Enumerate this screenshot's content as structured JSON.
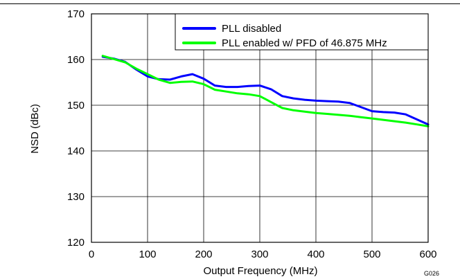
{
  "chart_data": {
    "type": "line",
    "title": "",
    "xlabel": "Output Frequency (MHz)",
    "ylabel": "NSD (dBc)",
    "xlim": [
      0,
      600
    ],
    "ylim": [
      120,
      170
    ],
    "xticks": [
      0,
      100,
      200,
      300,
      400,
      500,
      600
    ],
    "yticks": [
      120,
      130,
      140,
      150,
      160,
      170
    ],
    "grid": true,
    "legend_position": "top-right",
    "figure_id": "G026",
    "series": [
      {
        "name": "PLL disabled",
        "color": "#0000ff",
        "points": [
          [
            20,
            160.6
          ],
          [
            40,
            160.2
          ],
          [
            60,
            159.5
          ],
          [
            80,
            157.8
          ],
          [
            100,
            156.3
          ],
          [
            120,
            155.7
          ],
          [
            140,
            155.6
          ],
          [
            160,
            156.3
          ],
          [
            180,
            156.8
          ],
          [
            200,
            155.8
          ],
          [
            220,
            154.3
          ],
          [
            240,
            154.0
          ],
          [
            260,
            154.0
          ],
          [
            280,
            154.2
          ],
          [
            300,
            154.3
          ],
          [
            320,
            153.5
          ],
          [
            340,
            152.0
          ],
          [
            360,
            151.5
          ],
          [
            380,
            151.2
          ],
          [
            400,
            151.0
          ],
          [
            420,
            150.9
          ],
          [
            440,
            150.8
          ],
          [
            460,
            150.5
          ],
          [
            480,
            149.6
          ],
          [
            500,
            148.7
          ],
          [
            520,
            148.5
          ],
          [
            540,
            148.4
          ],
          [
            560,
            148.0
          ],
          [
            580,
            146.9
          ],
          [
            600,
            145.8
          ]
        ]
      },
      {
        "name": "PLL enabled w/ PFD of 46.875 MHz",
        "color": "#00ff00",
        "points": [
          [
            20,
            160.8
          ],
          [
            40,
            160.1
          ],
          [
            60,
            159.4
          ],
          [
            80,
            158.0
          ],
          [
            100,
            156.8
          ],
          [
            120,
            155.6
          ],
          [
            140,
            154.9
          ],
          [
            160,
            155.1
          ],
          [
            180,
            155.2
          ],
          [
            200,
            154.6
          ],
          [
            220,
            153.4
          ],
          [
            240,
            153.0
          ],
          [
            260,
            152.6
          ],
          [
            280,
            152.4
          ],
          [
            300,
            152.0
          ],
          [
            320,
            150.7
          ],
          [
            340,
            149.4
          ],
          [
            360,
            148.9
          ],
          [
            380,
            148.6
          ],
          [
            400,
            148.3
          ],
          [
            420,
            148.1
          ],
          [
            440,
            147.9
          ],
          [
            460,
            147.7
          ],
          [
            480,
            147.4
          ],
          [
            500,
            147.1
          ],
          [
            520,
            146.8
          ],
          [
            540,
            146.5
          ],
          [
            560,
            146.2
          ],
          [
            580,
            145.8
          ],
          [
            600,
            145.4
          ]
        ]
      }
    ]
  }
}
